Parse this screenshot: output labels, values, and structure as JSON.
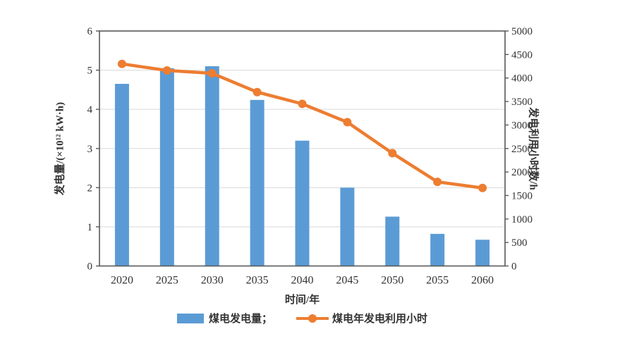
{
  "figure": {
    "background": "#ffffff"
  },
  "chart_data": {
    "type": "combo",
    "categories": [
      "2020",
      "2025",
      "2030",
      "2035",
      "2040",
      "2045",
      "2050",
      "2055",
      "2060"
    ],
    "series": [
      {
        "name": "煤电发电量",
        "chart": "bar",
        "axis": "left",
        "color": "#5b9bd5",
        "values": [
          4.65,
          5.05,
          5.1,
          4.24,
          3.2,
          2.0,
          1.26,
          0.82,
          0.67
        ]
      },
      {
        "name": "煤电年发电利用小时",
        "chart": "line",
        "axis": "right",
        "color": "#ed7d31",
        "values": [
          4300,
          4160,
          4100,
          3700,
          3450,
          3060,
          2400,
          1790,
          1660
        ]
      }
    ],
    "title": "",
    "xlabel": "时间/年",
    "ylabel_left": "发电量/(×10¹² kW·h)",
    "ylabel_right": "发电利用小时数/h",
    "left_axis": {
      "min": 0,
      "max": 6,
      "step": 1
    },
    "right_axis": {
      "min": 0,
      "max": 5000,
      "step": 500
    },
    "legend_labels": [
      "煤电发电量；",
      "煤电年发电利用小时"
    ],
    "legend_position": "bottom",
    "grid": "horizontal",
    "colors": {
      "bar": "#5b9bd5",
      "line": "#ed7d31",
      "axis": "#595959",
      "gridline": "#d9d9d9",
      "text": "#333333"
    }
  }
}
